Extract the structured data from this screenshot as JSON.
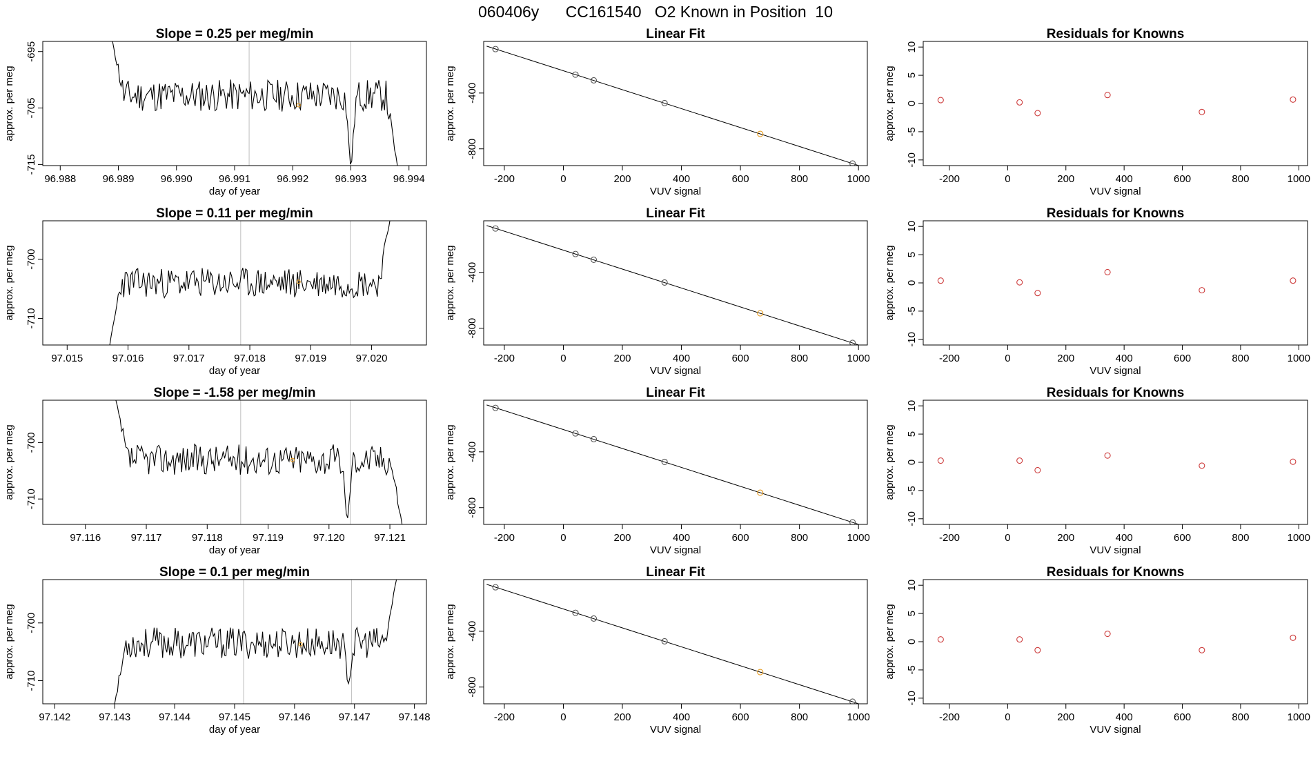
{
  "figure": {
    "title": "060406y      CC161540   O2 Known in Position  10"
  },
  "colors": {
    "line": "#000000",
    "vline": "#bebebe",
    "known_point": "#cd3c3c",
    "highlight_point": "#e69b1e"
  },
  "chart_data": [
    {
      "type": "line",
      "row": 0,
      "col": 0,
      "title": "Slope =  0.25  per meg/min",
      "xlabel": "day of year",
      "ylabel": "approx. per meg",
      "xlim": [
        96.9877,
        96.9943
      ],
      "ylim": [
        -715.2,
        -693.2
      ],
      "xticks": [
        "96.988",
        "96.989",
        "96.990",
        "96.991",
        "96.992",
        "96.993",
        "96.994"
      ],
      "yticks": [
        "-695",
        "-705",
        "-715"
      ],
      "series": {
        "x_start": 96.9889,
        "x_end": 96.9938,
        "base": -702.8,
        "amp": 1.8,
        "seed": 11,
        "start_level": -693.2,
        "end_level": -715.2,
        "dips": [
          [
            96.993,
            -715.2
          ]
        ]
      },
      "vlines": [
        96.99125,
        96.993
      ],
      "highlight": {
        "x": 96.9921,
        "y": -704.5
      }
    },
    {
      "type": "scatter_fit",
      "row": 0,
      "col": 1,
      "title": "Linear Fit",
      "xlabel": "VUV signal",
      "ylabel": "approx. per meg",
      "xlim": [
        -270,
        1030
      ],
      "ylim": [
        -920,
        -30
      ],
      "xticks": [
        "-200",
        "0",
        "200",
        "400",
        "600",
        "800",
        "1000"
      ],
      "yticks": [
        "-400",
        "-800"
      ],
      "points": [
        [
          -230,
          -85
        ],
        [
          41,
          -268
        ],
        [
          103,
          -309
        ],
        [
          343,
          -472
        ],
        [
          667,
          -693
        ],
        [
          980,
          -905
        ]
      ],
      "highlight_index": 4,
      "fit": {
        "x0": -260,
        "y0": -64,
        "x1": 1000,
        "y1": -919
      }
    },
    {
      "type": "scatter",
      "row": 0,
      "col": 2,
      "title": "Residuals for Knowns",
      "xlabel": "VUV signal",
      "ylabel": "approx. per meg",
      "xlim": [
        -290,
        1030
      ],
      "ylim": [
        -11,
        11
      ],
      "xticks": [
        "-200",
        "0",
        "200",
        "400",
        "600",
        "800",
        "1000"
      ],
      "yticks": [
        "10",
        "5",
        "0",
        "-5",
        "-10"
      ],
      "points": [
        [
          -230,
          0.6
        ],
        [
          41,
          0.2
        ],
        [
          103,
          -1.7
        ],
        [
          343,
          1.5
        ],
        [
          667,
          -1.5
        ],
        [
          980,
          0.7
        ]
      ]
    },
    {
      "type": "line",
      "row": 1,
      "col": 0,
      "title": "Slope =  0.11  per meg/min",
      "xlabel": "day of year",
      "ylabel": "approx. per meg",
      "xlim": [
        97.0146,
        97.0209
      ],
      "ylim": [
        -714.5,
        -693.5
      ],
      "xticks": [
        "97.015",
        "97.016",
        "97.017",
        "97.018",
        "97.019",
        "97.020"
      ],
      "yticks": [
        "-700",
        "-710"
      ],
      "series": {
        "x_start": 97.0157,
        "x_end": 97.0203,
        "base": -704.0,
        "amp": 1.6,
        "seed": 23,
        "start_level": -714.5,
        "end_level": -693.5,
        "dips": []
      },
      "vlines": [
        97.01785,
        97.01965
      ],
      "highlight": {
        "x": 97.0188,
        "y": -703.8
      }
    },
    {
      "type": "scatter_fit",
      "row": 1,
      "col": 1,
      "title": "Linear Fit",
      "xlabel": "VUV signal",
      "ylabel": "approx. per meg",
      "xlim": [
        -270,
        1030
      ],
      "ylim": [
        -920,
        -30
      ],
      "xticks": [
        "-200",
        "0",
        "200",
        "400",
        "600",
        "800",
        "1000"
      ],
      "yticks": [
        "-400",
        "-800"
      ],
      "points": [
        [
          -230,
          -85
        ],
        [
          41,
          -268
        ],
        [
          103,
          -309
        ],
        [
          343,
          -472
        ],
        [
          667,
          -693
        ],
        [
          980,
          -905
        ]
      ],
      "highlight_index": 4,
      "fit": {
        "x0": -260,
        "y0": -64,
        "x1": 1000,
        "y1": -919
      }
    },
    {
      "type": "scatter",
      "row": 1,
      "col": 2,
      "title": "Residuals for Knowns",
      "xlabel": "VUV signal",
      "ylabel": "approx. per meg",
      "xlim": [
        -290,
        1030
      ],
      "ylim": [
        -11,
        11
      ],
      "xticks": [
        "-200",
        "0",
        "200",
        "400",
        "600",
        "800",
        "1000"
      ],
      "yticks": [
        "10",
        "5",
        "0",
        "-5",
        "-10"
      ],
      "points": [
        [
          -230,
          0.4
        ],
        [
          41,
          0.1
        ],
        [
          103,
          -1.8
        ],
        [
          343,
          1.9
        ],
        [
          667,
          -1.3
        ],
        [
          980,
          0.4
        ]
      ]
    },
    {
      "type": "line",
      "row": 2,
      "col": 0,
      "title": "Slope =  -1.58  per meg/min",
      "xlabel": "day of year",
      "ylabel": "approx. per meg",
      "xlim": [
        97.1153,
        97.1216
      ],
      "ylim": [
        -714.5,
        -692.5
      ],
      "xticks": [
        "97.116",
        "97.117",
        "97.118",
        "97.119",
        "97.120",
        "97.121"
      ],
      "yticks": [
        "-700",
        "-710"
      ],
      "series": {
        "x_start": 97.1165,
        "x_end": 97.1212,
        "base": -703.0,
        "amp": 1.7,
        "seed": 37,
        "start_level": -692.5,
        "end_level": -714.5,
        "dips": [
          [
            97.1203,
            -713.5
          ]
        ]
      },
      "vlines": [
        97.11855,
        97.12035
      ],
      "highlight": {
        "x": 97.1194,
        "y": -703.1
      }
    },
    {
      "type": "scatter_fit",
      "row": 2,
      "col": 1,
      "title": "Linear Fit",
      "xlabel": "VUV signal",
      "ylabel": "approx. per meg",
      "xlim": [
        -270,
        1030
      ],
      "ylim": [
        -920,
        -30
      ],
      "xticks": [
        "-200",
        "0",
        "200",
        "400",
        "600",
        "800",
        "1000"
      ],
      "yticks": [
        "-400",
        "-800"
      ],
      "points": [
        [
          -230,
          -85
        ],
        [
          41,
          -268
        ],
        [
          103,
          -309
        ],
        [
          343,
          -472
        ],
        [
          667,
          -693
        ],
        [
          980,
          -905
        ]
      ],
      "highlight_index": 4,
      "fit": {
        "x0": -260,
        "y0": -64,
        "x1": 1000,
        "y1": -919
      }
    },
    {
      "type": "scatter",
      "row": 2,
      "col": 2,
      "title": "Residuals for Knowns",
      "xlabel": "VUV signal",
      "ylabel": "approx. per meg",
      "xlim": [
        -290,
        1030
      ],
      "ylim": [
        -11,
        11
      ],
      "xticks": [
        "-200",
        "0",
        "200",
        "400",
        "600",
        "800",
        "1000"
      ],
      "yticks": [
        "10",
        "5",
        "0",
        "-5",
        "-10"
      ],
      "points": [
        [
          -230,
          0.3
        ],
        [
          41,
          0.3
        ],
        [
          103,
          -1.4
        ],
        [
          343,
          1.2
        ],
        [
          667,
          -0.6
        ],
        [
          980,
          0.1
        ]
      ]
    },
    {
      "type": "line",
      "row": 3,
      "col": 0,
      "title": "Slope =  0.1  per meg/min",
      "xlabel": "day of year",
      "ylabel": "approx. per meg",
      "xlim": [
        97.1418,
        97.1482
      ],
      "ylim": [
        -714.0,
        -692.5
      ],
      "xticks": [
        "97.142",
        "97.143",
        "97.144",
        "97.145",
        "97.146",
        "97.147",
        "97.148"
      ],
      "yticks": [
        "-700",
        "-710"
      ],
      "series": {
        "x_start": 97.143,
        "x_end": 97.1477,
        "base": -703.5,
        "amp": 1.7,
        "seed": 53,
        "start_level": -714.0,
        "end_level": -692.5,
        "dips": [
          [
            97.1469,
            -710.5
          ]
        ]
      },
      "vlines": [
        97.14515,
        97.14695
      ],
      "highlight": {
        "x": 97.1461,
        "y": -703.7
      }
    },
    {
      "type": "scatter_fit",
      "row": 3,
      "col": 1,
      "title": "Linear Fit",
      "xlabel": "VUV signal",
      "ylabel": "approx. per meg",
      "xlim": [
        -270,
        1030
      ],
      "ylim": [
        -920,
        -30
      ],
      "xticks": [
        "-200",
        "0",
        "200",
        "400",
        "600",
        "800",
        "1000"
      ],
      "yticks": [
        "-400",
        "-800"
      ],
      "points": [
        [
          -230,
          -85
        ],
        [
          41,
          -268
        ],
        [
          103,
          -309
        ],
        [
          343,
          -472
        ],
        [
          667,
          -693
        ],
        [
          980,
          -905
        ]
      ],
      "highlight_index": 4,
      "fit": {
        "x0": -260,
        "y0": -64,
        "x1": 1000,
        "y1": -919
      }
    },
    {
      "type": "scatter",
      "row": 3,
      "col": 2,
      "title": "Residuals for Knowns",
      "xlabel": "VUV signal",
      "ylabel": "approx. per meg",
      "xlim": [
        -290,
        1030
      ],
      "ylim": [
        -11,
        11
      ],
      "xticks": [
        "-200",
        "0",
        "200",
        "400",
        "600",
        "800",
        "1000"
      ],
      "yticks": [
        "10",
        "5",
        "0",
        "-5",
        "-10"
      ],
      "points": [
        [
          -230,
          0.4
        ],
        [
          41,
          0.4
        ],
        [
          103,
          -1.5
        ],
        [
          343,
          1.4
        ],
        [
          667,
          -1.5
        ],
        [
          980,
          0.7
        ]
      ]
    }
  ]
}
